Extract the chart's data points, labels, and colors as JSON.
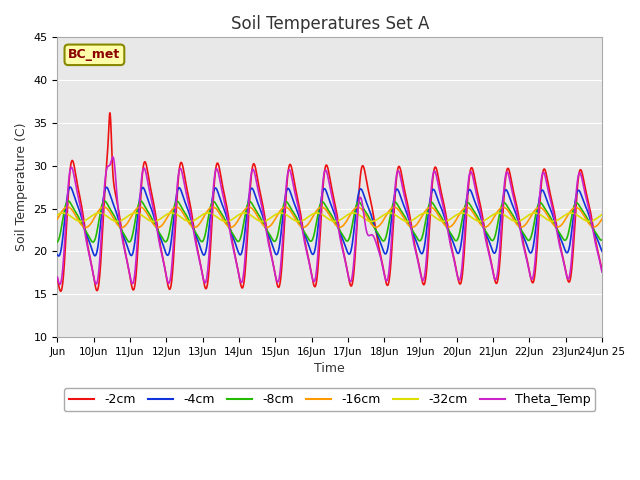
{
  "title": "Soil Temperatures Set A",
  "xlabel": "Time",
  "ylabel": "Soil Temperature (C)",
  "ylim": [
    10,
    45
  ],
  "xlim": [
    0,
    15
  ],
  "xtick_positions": [
    0,
    1,
    2,
    3,
    4,
    5,
    6,
    7,
    8,
    9,
    10,
    11,
    12,
    13,
    14,
    15
  ],
  "xtick_labels": [
    "Jun",
    "10Jun",
    "11Jun",
    "12Jun",
    "13Jun",
    "14Jun",
    "15Jun",
    "16Jun",
    "17Jun",
    "18Jun",
    "19Jun",
    "20Jun",
    "21Jun",
    "22Jun",
    "23Jun",
    "24Jun 25"
  ],
  "annotation_text": "BC_met",
  "bg_color": "#e8e8e8",
  "legend_order": [
    "-2cm",
    "-4cm",
    "-8cm",
    "-16cm",
    "-32cm",
    "Theta_Temp"
  ],
  "line_colors": {
    "-2cm": "#ee1111",
    "-4cm": "#1133dd",
    "-8cm": "#22bb00",
    "-16cm": "#ff9900",
    "-32cm": "#dddd00",
    "Theta_Temp": "#cc22cc"
  }
}
